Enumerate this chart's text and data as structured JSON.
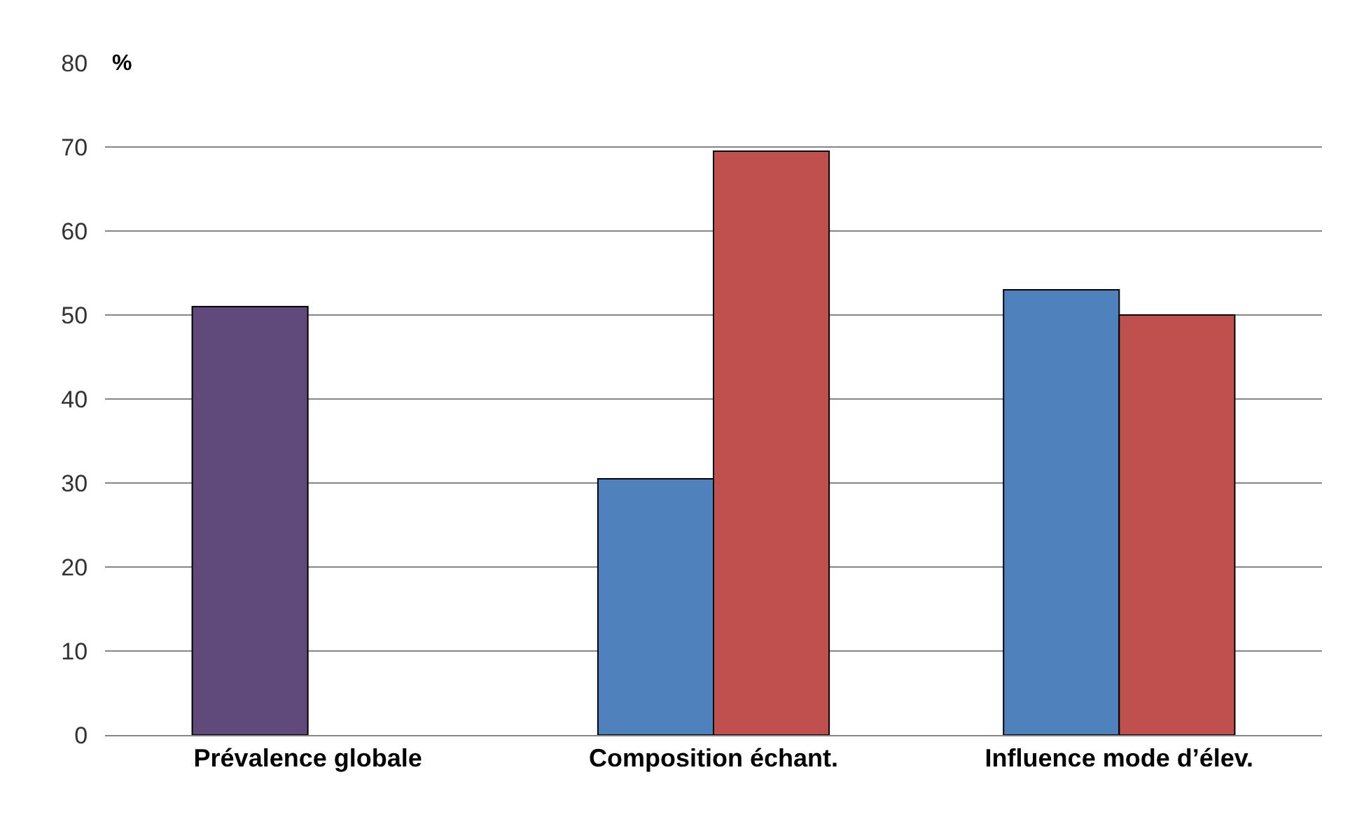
{
  "chart_data": {
    "type": "bar",
    "ylabel": "%",
    "categories": [
      "Prévalence globale",
      "Composition échant.",
      "Influence mode d’élev."
    ],
    "series": [
      {
        "colors": [
          "#604a7b",
          "#4f81bd",
          "#4f81bd"
        ],
        "values": [
          51,
          30.5,
          53
        ]
      },
      {
        "color": "#c0504d",
        "values": [
          null,
          69.5,
          50
        ]
      }
    ],
    "ylim": [
      0,
      80
    ],
    "yticks": [
      0,
      10,
      20,
      30,
      40,
      50,
      60,
      70,
      80
    ],
    "grid": "y"
  }
}
